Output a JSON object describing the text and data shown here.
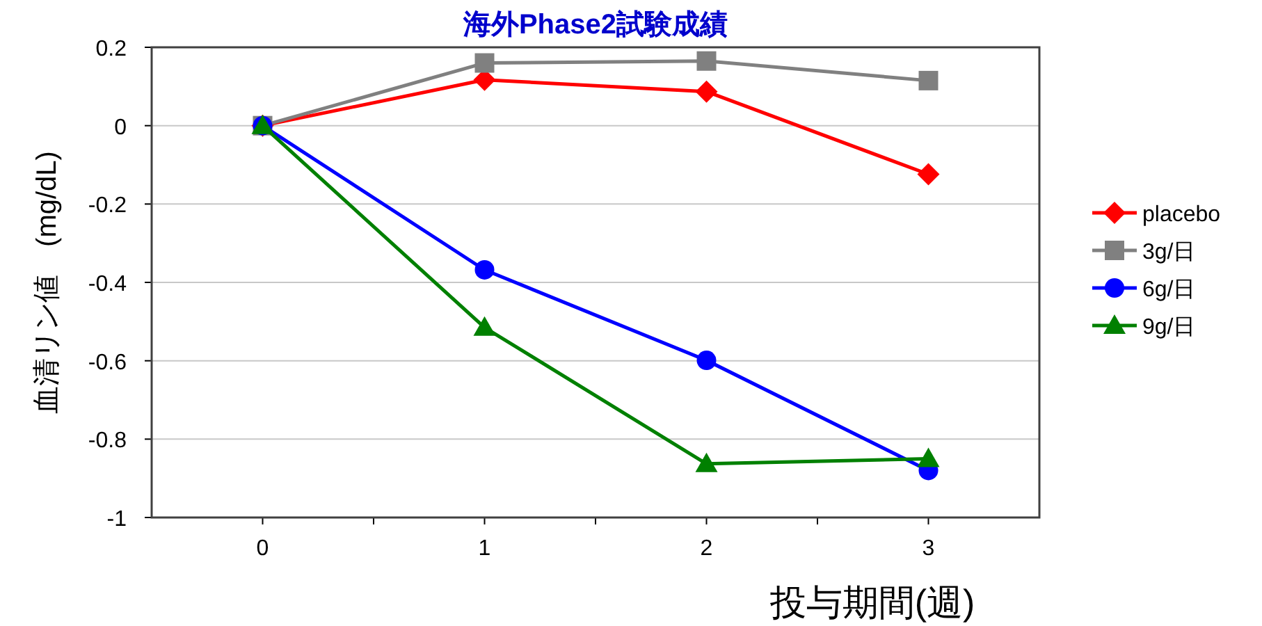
{
  "chart_data": {
    "type": "line",
    "title": "海外Phase2試験成績",
    "xlabel": "投与期間(週)",
    "ylabel": "血清リン値　(mg/dL)",
    "x": [
      0,
      1,
      2,
      3
    ],
    "xlim": [
      -0.5,
      3.5
    ],
    "xticks": [
      0,
      {
        "value": 0.5,
        "label": null
      },
      1,
      {
        "value": 1.5,
        "label": null
      },
      2,
      {
        "value": 2.5,
        "label": null
      },
      3
    ],
    "ylim": [
      -1,
      0.2
    ],
    "yticks": [
      -1,
      -0.8,
      -0.6,
      -0.4,
      -0.2,
      0,
      0.2
    ],
    "grid": "y",
    "legend": "right",
    "series": [
      {
        "name": "placebo",
        "color": "#ff0000",
        "marker": "diamond",
        "values": [
          0,
          0.117,
          0.087,
          -0.124
        ]
      },
      {
        "name": "3g/日",
        "color": "#808080",
        "marker": "square",
        "values": [
          0,
          0.16,
          0.165,
          0.115
        ]
      },
      {
        "name": "6g/日",
        "color": "#0000ff",
        "marker": "circle",
        "values": [
          0,
          -0.368,
          -0.599,
          -0.88
        ]
      },
      {
        "name": "9g/日",
        "color": "#008000",
        "marker": "triangle",
        "values": [
          0,
          -0.515,
          -0.863,
          -0.85
        ]
      }
    ]
  }
}
